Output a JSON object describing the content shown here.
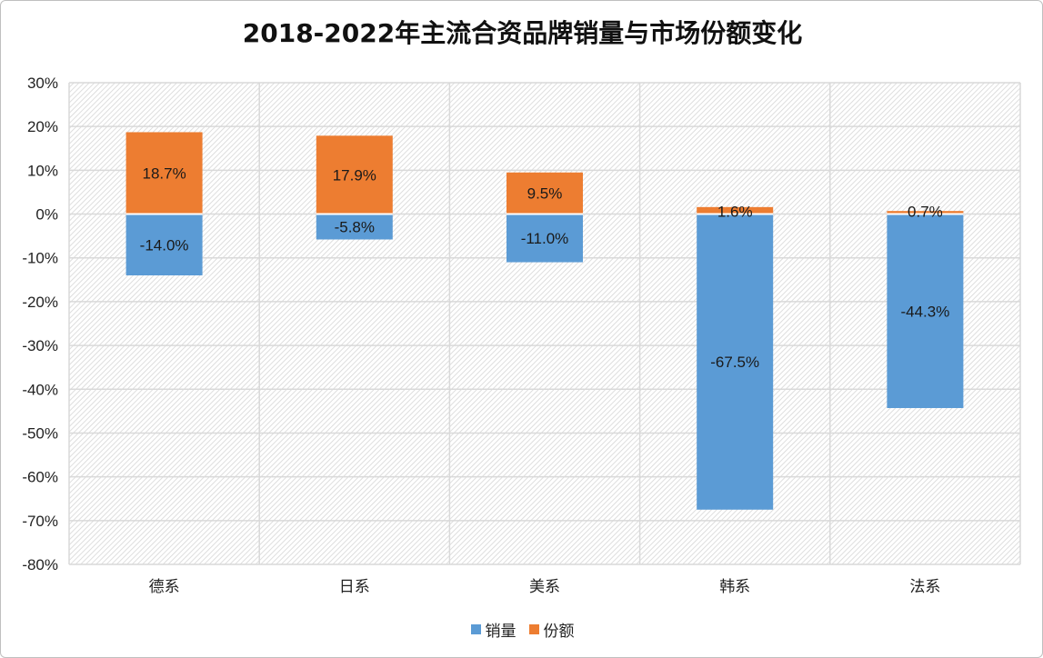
{
  "chart_data": {
    "type": "bar",
    "stacked": true,
    "title": "2018-2022年主流合资品牌销量与市场份额变化",
    "categories": [
      "德系",
      "日系",
      "美系",
      "韩系",
      "法系"
    ],
    "series": [
      {
        "name": "销量",
        "color": "#5b9bd5",
        "values": [
          -14.0,
          -5.8,
          -11.0,
          -67.5,
          -44.3
        ],
        "labels": [
          "-14.0%",
          "-5.8%",
          "-11.0%",
          "-67.5%",
          "-44.3%"
        ]
      },
      {
        "name": "份额",
        "color": "#ed7d31",
        "values": [
          18.7,
          17.9,
          9.5,
          1.6,
          0.7
        ],
        "labels": [
          "18.7%",
          "17.9%",
          "9.5%",
          "1.6%",
          "0.7%"
        ]
      }
    ],
    "ylim": [
      -80,
      30
    ],
    "yticks": [
      30,
      20,
      10,
      0,
      -10,
      -20,
      -30,
      -40,
      -50,
      -60,
      -70,
      -80
    ],
    "ytick_labels": [
      "30%",
      "20%",
      "10%",
      "0%",
      "-10%",
      "-20%",
      "-30%",
      "-40%",
      "-50%",
      "-60%",
      "-70%",
      "-80%"
    ],
    "xlabel": "",
    "ylabel": "",
    "grid": true,
    "legend": "bottom-center"
  }
}
